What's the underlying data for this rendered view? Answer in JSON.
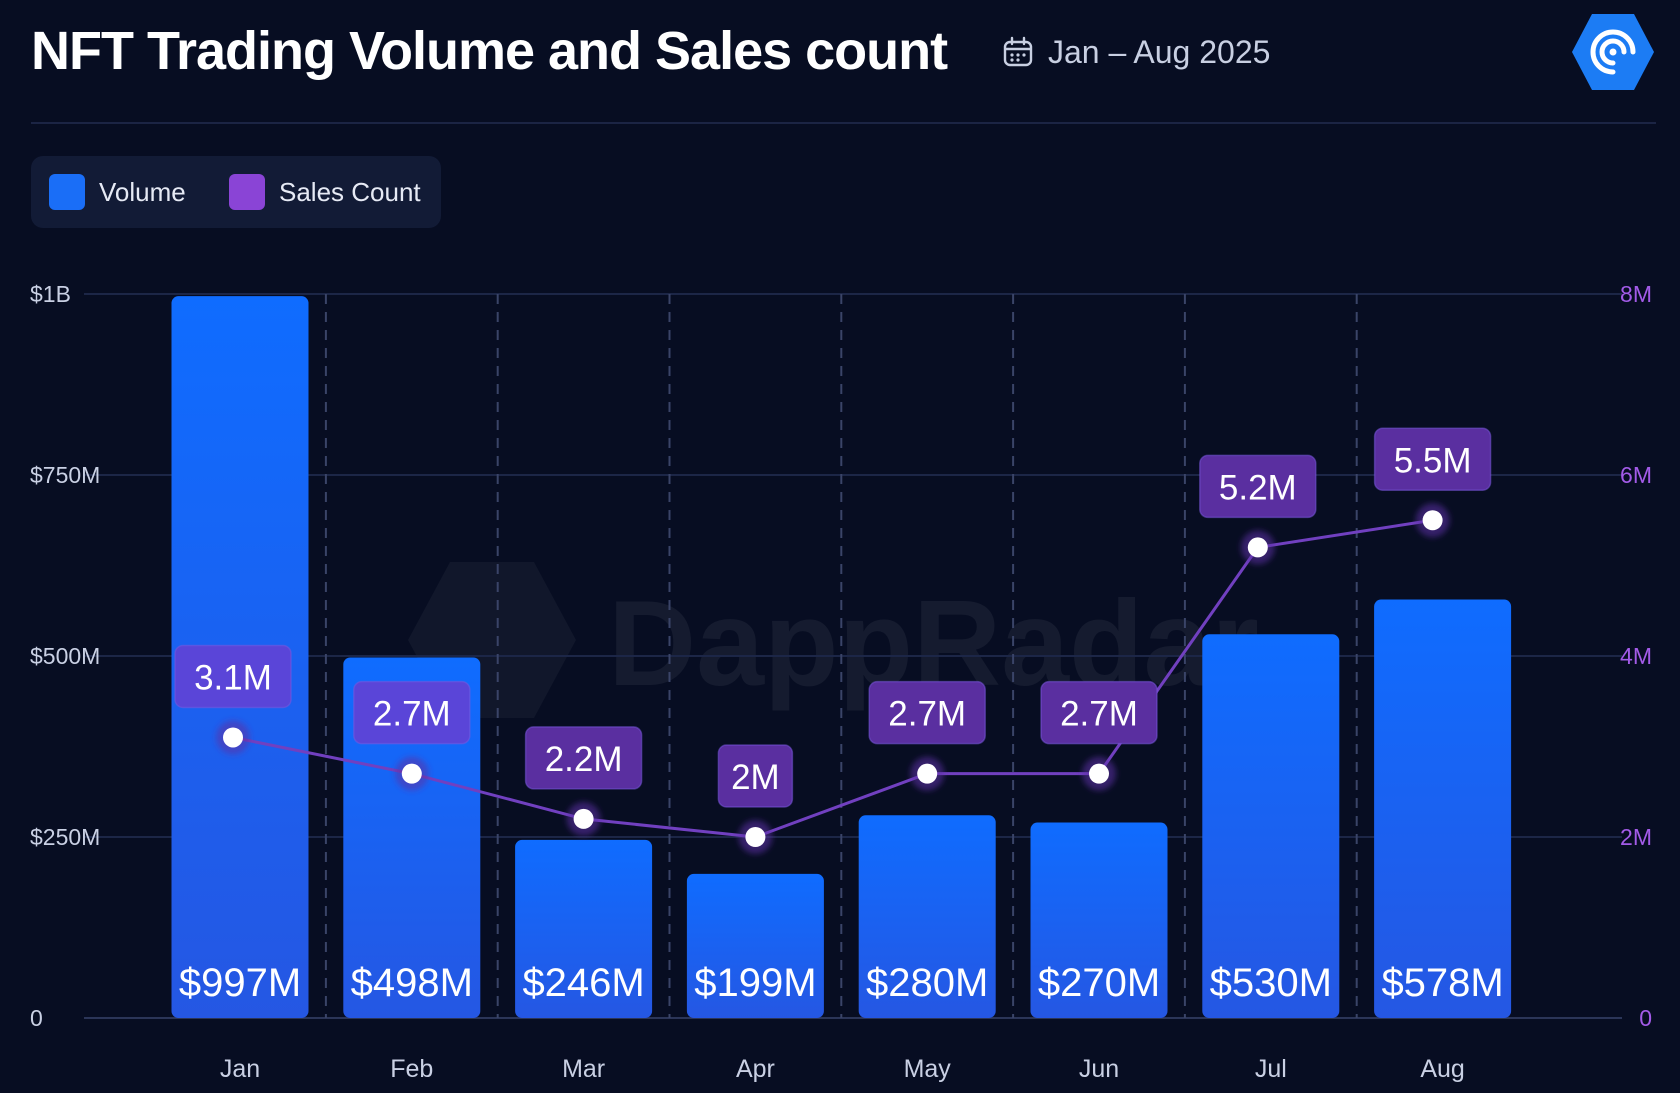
{
  "header": {
    "title": "NFT Trading Volume and Sales count",
    "date_range": "Jan – Aug 2025",
    "calendar_icon": "calendar-icon",
    "logo_icon": "dappradar-logo"
  },
  "legend": [
    {
      "label": "Volume",
      "color": "#1a6ef7"
    },
    {
      "label": "Sales Count",
      "color": "#8a44d6"
    }
  ],
  "watermark": "DappRadar",
  "colors": {
    "background": "#070d22",
    "bar_top": "#0f6cff",
    "bar_bottom": "#2458e6",
    "line": "#7140c0",
    "label_volume_box": "#5a45d8",
    "label_sales_box": "#5a2fa0",
    "right_axis": "#a35be8",
    "left_axis": "#c9d0e4"
  },
  "chart_data": {
    "type": "bar",
    "categories": [
      "Jan",
      "Feb",
      "Mar",
      "Apr",
      "May",
      "Jun",
      "Jul",
      "Aug"
    ],
    "series": [
      {
        "name": "Volume",
        "axis": "left",
        "values": [
          997,
          498,
          246,
          199,
          280,
          270,
          530,
          578
        ],
        "unit": "millions USD",
        "labels": [
          "$997M",
          "$498M",
          "$246M",
          "$199M",
          "$280M",
          "$270M",
          "$530M",
          "$578M"
        ]
      },
      {
        "name": "Sales Count",
        "axis": "right",
        "type": "line",
        "values": [
          3.1,
          2.7,
          2.2,
          2.0,
          2.7,
          2.7,
          5.2,
          5.5
        ],
        "unit": "millions",
        "labels": [
          "3.1M",
          "2.7M",
          "2.2M",
          "2M",
          "2.7M",
          "2.7M",
          "5.2M",
          "5.5M"
        ]
      }
    ],
    "left_axis": {
      "ylim": [
        0,
        1000
      ],
      "ticks": [
        0,
        250,
        500,
        750,
        1000
      ],
      "tick_labels": [
        "0",
        "$250M",
        "$500M",
        "$750M",
        "$1B"
      ]
    },
    "right_axis": {
      "ylim": [
        0,
        8
      ],
      "ticks": [
        0,
        2,
        4,
        6,
        8
      ],
      "tick_labels": [
        "0",
        "2M",
        "4M",
        "6M",
        "8M"
      ]
    },
    "grid": true,
    "legend_position": "top-left"
  }
}
